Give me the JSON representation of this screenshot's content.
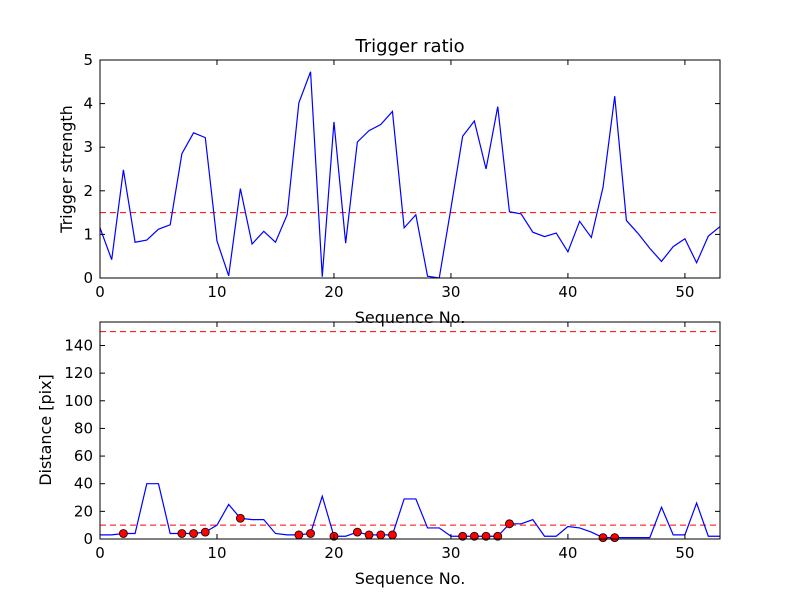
{
  "colors": {
    "line": "#0000ff",
    "threshold": "#ff0000",
    "marker_fill": "#ff0000",
    "marker_edge": "#000000"
  },
  "chart_data": [
    {
      "type": "line",
      "title": "Trigger ratio",
      "xlabel": "Sequence No.",
      "ylabel": "Trigger strength",
      "xlim": [
        0,
        53
      ],
      "ylim": [
        0,
        5
      ],
      "xticks": [
        0,
        10,
        20,
        30,
        40,
        50
      ],
      "yticks": [
        0,
        1,
        2,
        3,
        4,
        5
      ],
      "grid": false,
      "series": [
        {
          "x": [
            0,
            1,
            2,
            3,
            4,
            5,
            6,
            7,
            8,
            9,
            10,
            11,
            12,
            13,
            14,
            15,
            16,
            17,
            18,
            19,
            20,
            21,
            22,
            23,
            24,
            25,
            26,
            27,
            28,
            29,
            30,
            31,
            32,
            33,
            34,
            35,
            36,
            37,
            38,
            39,
            40,
            41,
            42,
            43,
            44,
            45,
            46,
            47,
            48,
            49,
            50,
            51,
            52,
            53
          ],
          "y": [
            1.15,
            0.42,
            2.48,
            0.82,
            0.87,
            1.12,
            1.22,
            2.85,
            3.33,
            3.22,
            0.85,
            0.05,
            2.05,
            0.78,
            1.07,
            0.82,
            1.45,
            4.02,
            4.73,
            0.03,
            3.58,
            0.8,
            3.12,
            3.38,
            3.52,
            3.82,
            1.15,
            1.45,
            0.04,
            0.0,
            1.6,
            3.25,
            3.6,
            2.5,
            3.93,
            1.52,
            1.47,
            1.05,
            0.95,
            1.03,
            0.6,
            1.3,
            0.93,
            2.08,
            4.17,
            1.32,
            1.02,
            0.68,
            0.38,
            0.72,
            0.9,
            0.35,
            0.96,
            1.18
          ]
        }
      ],
      "threshold": 1.5
    },
    {
      "type": "line",
      "title": "",
      "xlabel": "Sequence No.",
      "ylabel": "Distance [pix]",
      "xlim": [
        0,
        53
      ],
      "ylim": [
        0,
        157
      ],
      "xticks": [
        0,
        10,
        20,
        30,
        40,
        50
      ],
      "yticks": [
        0,
        20,
        40,
        60,
        80,
        100,
        120,
        140
      ],
      "grid": false,
      "series": [
        {
          "x": [
            0,
            1,
            2,
            3,
            4,
            5,
            6,
            7,
            8,
            9,
            10,
            11,
            12,
            13,
            14,
            15,
            16,
            17,
            18,
            19,
            20,
            21,
            22,
            23,
            24,
            25,
            26,
            27,
            28,
            29,
            30,
            31,
            32,
            33,
            34,
            35,
            36,
            37,
            38,
            39,
            40,
            41,
            42,
            43,
            44,
            45,
            46,
            47,
            48,
            49,
            50,
            51,
            52,
            53
          ],
          "y": [
            3,
            3,
            4,
            4,
            40,
            40,
            4,
            4,
            4,
            5,
            10,
            25,
            15,
            14,
            14,
            4,
            3,
            3,
            4,
            31,
            2,
            2,
            5,
            3,
            3,
            3,
            29,
            29,
            8,
            8,
            2,
            2,
            2,
            2,
            2,
            11,
            11,
            14,
            2,
            2,
            9,
            8,
            5,
            1,
            1,
            1,
            1,
            1,
            23,
            3,
            3,
            26,
            2,
            2
          ]
        }
      ],
      "markers": {
        "x": [
          2,
          7,
          8,
          9,
          12,
          17,
          18,
          20,
          22,
          23,
          24,
          25,
          31,
          32,
          33,
          34,
          35,
          43,
          44
        ],
        "y": [
          4,
          4,
          4,
          5,
          15,
          3,
          4,
          2,
          5,
          3,
          3,
          3,
          2,
          2,
          2,
          2,
          11,
          1,
          1
        ]
      },
      "thresholds": [
        10,
        150
      ]
    }
  ]
}
